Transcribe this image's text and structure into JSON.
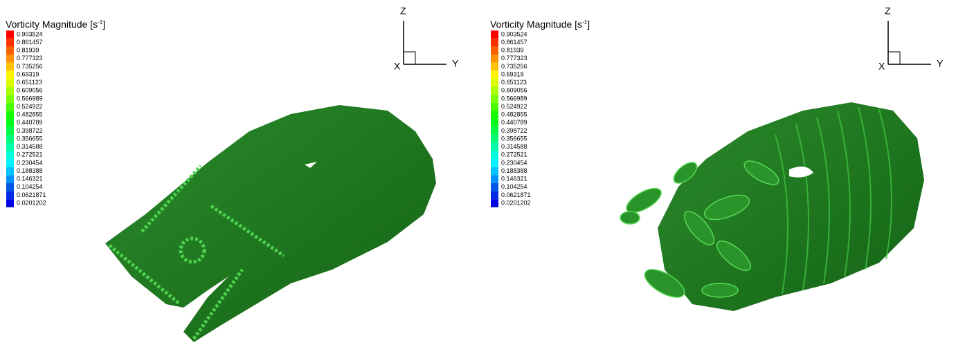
{
  "panels": [
    {
      "legend": {
        "title": "Vorticity Magnitude [s",
        "title_sup": "-1",
        "title_end": "]",
        "levels": [
          "0.903524",
          "0.861457",
          "0.81939",
          "0.777323",
          "0.735256",
          "0.69319",
          "0.651123",
          "0.609056",
          "0.566989",
          "0.524922",
          "0.482855",
          "0.440789",
          "0.398722",
          "0.356655",
          "0.314588",
          "0.272521",
          "0.230454",
          "0.188388",
          "0.146321",
          "0.104254",
          "0.0621871",
          "0.0201202"
        ]
      },
      "axes": {
        "z": "Z",
        "x": "X",
        "y": "Y"
      }
    },
    {
      "legend": {
        "title": "Vorticity Magnitude [s",
        "title_sup": "-1",
        "title_end": "]",
        "levels": [
          "0.903524",
          "0.861457",
          "0.81939",
          "0.777323",
          "0.735256",
          "0.69319",
          "0.651123",
          "0.609056",
          "0.566989",
          "0.524922",
          "0.482855",
          "0.440789",
          "0.398722",
          "0.356655",
          "0.314588",
          "0.272521",
          "0.230454",
          "0.188388",
          "0.146321",
          "0.104254",
          "0.0621871",
          "0.0201202"
        ]
      },
      "axes": {
        "z": "Z",
        "x": "X",
        "y": "Y"
      }
    }
  ]
}
